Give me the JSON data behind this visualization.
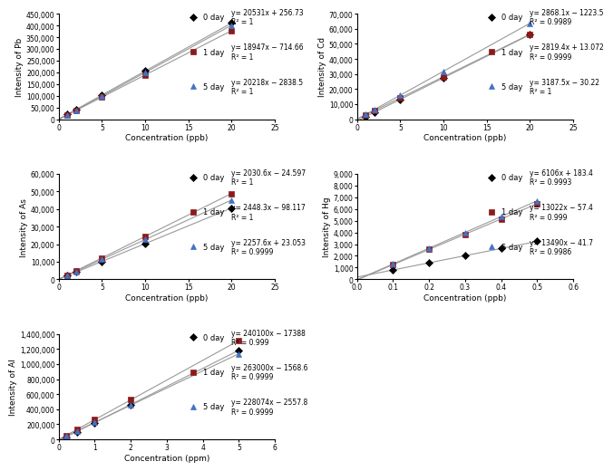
{
  "pb": {
    "xlabel": "Concentration (ppb)",
    "ylabel": "Intensity of Pb",
    "xlim": [
      0,
      25
    ],
    "ylim": [
      0,
      450000
    ],
    "ytick_vals": [
      0,
      50000,
      100000,
      150000,
      200000,
      250000,
      300000,
      350000,
      400000,
      450000
    ],
    "xticks": [
      0,
      5,
      10,
      15,
      20,
      25
    ],
    "series": [
      {
        "label": "0 day",
        "marker": "D",
        "color": "#000000",
        "x": [
          1,
          2,
          5,
          10,
          20
        ],
        "slope": 20531,
        "intercept": 256.73
      },
      {
        "label": "1 day",
        "marker": "s",
        "color": "#8B1A1A",
        "x": [
          1,
          2,
          5,
          10,
          20
        ],
        "slope": 18947,
        "intercept": -714.66
      },
      {
        "label": "5 day",
        "marker": "^",
        "color": "#4472C4",
        "x": [
          1,
          2,
          5,
          10,
          20
        ],
        "slope": 20218,
        "intercept": -2838.5
      }
    ],
    "equations": [
      "y= 20531x + 256.73\nR² = 1",
      "y= 18947x − 714.66\nR² = 1",
      "y= 20218x − 2838.5\nR² = 1"
    ]
  },
  "cd": {
    "xlabel": "Concentration (ppb)",
    "ylabel": "Intensity of Cd",
    "xlim": [
      0,
      25
    ],
    "ylim": [
      0,
      70000
    ],
    "ytick_vals": [
      0,
      10000,
      20000,
      30000,
      40000,
      50000,
      60000,
      70000
    ],
    "xticks": [
      0,
      5,
      10,
      15,
      20,
      25
    ],
    "series": [
      {
        "label": "0 day",
        "marker": "D",
        "color": "#000000",
        "x": [
          1,
          2,
          5,
          10,
          20
        ],
        "slope": 2868.1,
        "intercept": -1223.5
      },
      {
        "label": "1 day",
        "marker": "s",
        "color": "#8B1A1A",
        "x": [
          1,
          2,
          5,
          10,
          20
        ],
        "slope": 2819.4,
        "intercept": 13.072
      },
      {
        "label": "5 day",
        "marker": "^",
        "color": "#4472C4",
        "x": [
          1,
          2,
          5,
          10,
          20
        ],
        "slope": 3187.5,
        "intercept": -30.22
      }
    ],
    "equations": [
      "y= 2868.1x − 1223.5\nR² = 0.9989",
      "y= 2819.4x + 13.072\nR² = 0.9999",
      "y= 3187.5x − 30.22\nR² = 1"
    ]
  },
  "as": {
    "xlabel": "Concentration (ppb)",
    "ylabel": "Intensity of As",
    "xlim": [
      0,
      25
    ],
    "ylim": [
      0,
      60000
    ],
    "ytick_vals": [
      0,
      10000,
      20000,
      30000,
      40000,
      50000,
      60000
    ],
    "xticks": [
      0,
      5,
      10,
      15,
      20,
      25
    ],
    "series": [
      {
        "label": "0 day",
        "marker": "D",
        "color": "#000000",
        "x": [
          1,
          2,
          5,
          10,
          20
        ],
        "slope": 2030.6,
        "intercept": -24.597
      },
      {
        "label": "1 day",
        "marker": "s",
        "color": "#8B1A1A",
        "x": [
          1,
          2,
          5,
          10,
          20
        ],
        "slope": 2448.3,
        "intercept": -98.117
      },
      {
        "label": "5 day",
        "marker": "^",
        "color": "#4472C4",
        "x": [
          1,
          2,
          5,
          10,
          20
        ],
        "slope": 2257.6,
        "intercept": 23.053
      }
    ],
    "equations": [
      "y= 2030.6x − 24.597\nR² = 1",
      "y= 2448.3x − 98.117\nR² = 1",
      "y= 2257.6x + 23.053\nR² = 0.9999"
    ]
  },
  "hg": {
    "xlabel": "Concentration (ppb)",
    "ylabel": "Intensity of Hg",
    "xlim": [
      0.0,
      0.6
    ],
    "ylim": [
      0,
      9000
    ],
    "ytick_vals": [
      0,
      1000,
      2000,
      3000,
      4000,
      5000,
      6000,
      7000,
      8000,
      9000
    ],
    "xticks": [
      0.0,
      0.1,
      0.2,
      0.3,
      0.4,
      0.5,
      0.6
    ],
    "series": [
      {
        "label": "0 day",
        "marker": "D",
        "color": "#000000",
        "x": [
          0.1,
          0.2,
          0.3,
          0.4,
          0.5
        ],
        "slope": 6106,
        "intercept": 183.4
      },
      {
        "label": "1 day",
        "marker": "s",
        "color": "#8B1A1A",
        "x": [
          0.1,
          0.2,
          0.3,
          0.4,
          0.5
        ],
        "slope": 13022,
        "intercept": -57.4
      },
      {
        "label": "5 day",
        "marker": "^",
        "color": "#4472C4",
        "x": [
          0.1,
          0.2,
          0.3,
          0.4,
          0.5
        ],
        "slope": 13490,
        "intercept": -41.7
      }
    ],
    "equations": [
      "y= 6106x + 183.4\nR² = 0.9993",
      "y= 13022x − 57.4\nR² = 0.999",
      "y= 13490x − 41.7\nR² = 0.9986"
    ]
  },
  "al": {
    "xlabel": "Concentration (ppm)",
    "ylabel": "Intensity of Al",
    "xlim": [
      0,
      6
    ],
    "ylim": [
      0,
      1400000
    ],
    "ytick_vals": [
      0,
      200000,
      400000,
      600000,
      800000,
      1000000,
      1200000,
      1400000
    ],
    "xticks": [
      0.0,
      1.0,
      2.0,
      3.0,
      4.0,
      5.0,
      6.0
    ],
    "series": [
      {
        "label": "0 day",
        "marker": "D",
        "color": "#000000",
        "x": [
          0.2,
          0.5,
          1.0,
          2.0,
          5.0
        ],
        "slope": 240100,
        "intercept": -17388
      },
      {
        "label": "1 day",
        "marker": "s",
        "color": "#8B1A1A",
        "x": [
          0.2,
          0.5,
          1.0,
          2.0,
          5.0
        ],
        "slope": 263000,
        "intercept": -1568.6
      },
      {
        "label": "5 day",
        "marker": "^",
        "color": "#4472C4",
        "x": [
          0.2,
          0.5,
          1.0,
          2.0,
          5.0
        ],
        "slope": 228074,
        "intercept": -2557.8
      }
    ],
    "equations": [
      "y= 240100x − 17388\nR² = 0.999",
      "y= 263000x − 1568.6\nR² = 0.9999",
      "y= 228074x − 2557.8\nR² = 0.9999"
    ]
  },
  "marker_size": 4,
  "line_color": "#999999",
  "line_width": 0.8,
  "font_size_label": 6.5,
  "font_size_tick": 5.5,
  "font_size_legend": 6,
  "font_size_eq": 5.5
}
